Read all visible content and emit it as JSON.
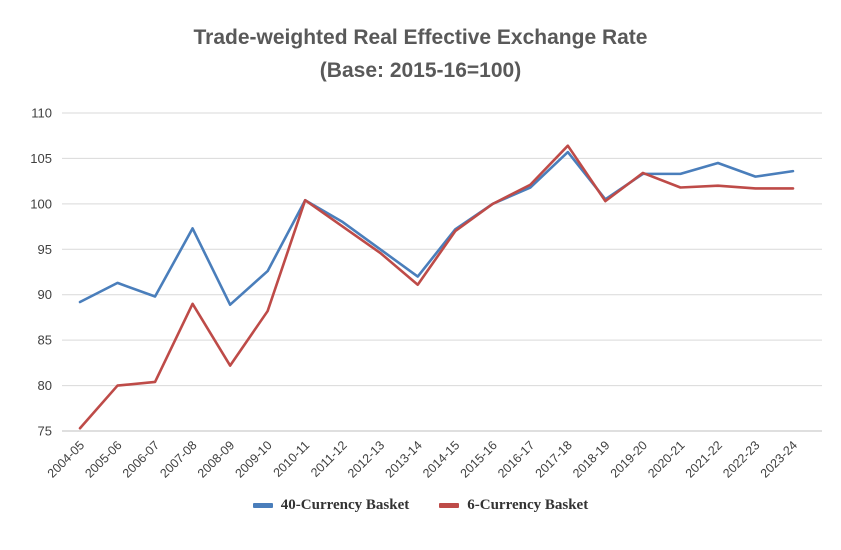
{
  "title": {
    "line1": "Trade-weighted Real Effective Exchange Rate",
    "line2": "(Base: 2015-16=100)"
  },
  "chart_data": {
    "type": "line",
    "title": "Trade-weighted Real Effective Exchange Rate (Base: 2015-16=100)",
    "categories": [
      "2004-05",
      "2005-06",
      "2006-07",
      "2007-08",
      "2008-09",
      "2009-10",
      "2010-11",
      "2011-12",
      "2012-13",
      "2013-14",
      "2014-15",
      "2015-16",
      "2016-17",
      "2017-18",
      "2018-19",
      "2019-20",
      "2020-21",
      "2021-22",
      "2022-23",
      "2023-24"
    ],
    "series": [
      {
        "name": "40-Currency Basket",
        "color": "#4a7ebb",
        "values": [
          89.2,
          91.3,
          89.8,
          97.3,
          88.9,
          92.6,
          100.4,
          98.0,
          95.0,
          92.0,
          97.2,
          100.0,
          101.8,
          105.7,
          100.5,
          103.3,
          103.3,
          104.5,
          103.0,
          103.6
        ]
      },
      {
        "name": "6-Currency Basket",
        "color": "#be4b48",
        "values": [
          75.3,
          80.0,
          80.4,
          89.0,
          82.2,
          88.2,
          100.4,
          97.5,
          94.6,
          91.1,
          97.0,
          100.0,
          102.1,
          106.4,
          100.3,
          103.4,
          101.8,
          102.0,
          101.7,
          101.7
        ]
      }
    ],
    "xlabel": "",
    "ylabel": "",
    "ylim": [
      75,
      110
    ],
    "yticks": [
      75,
      80,
      85,
      90,
      95,
      100,
      105,
      110
    ],
    "grid": true,
    "legend_position": "bottom"
  }
}
